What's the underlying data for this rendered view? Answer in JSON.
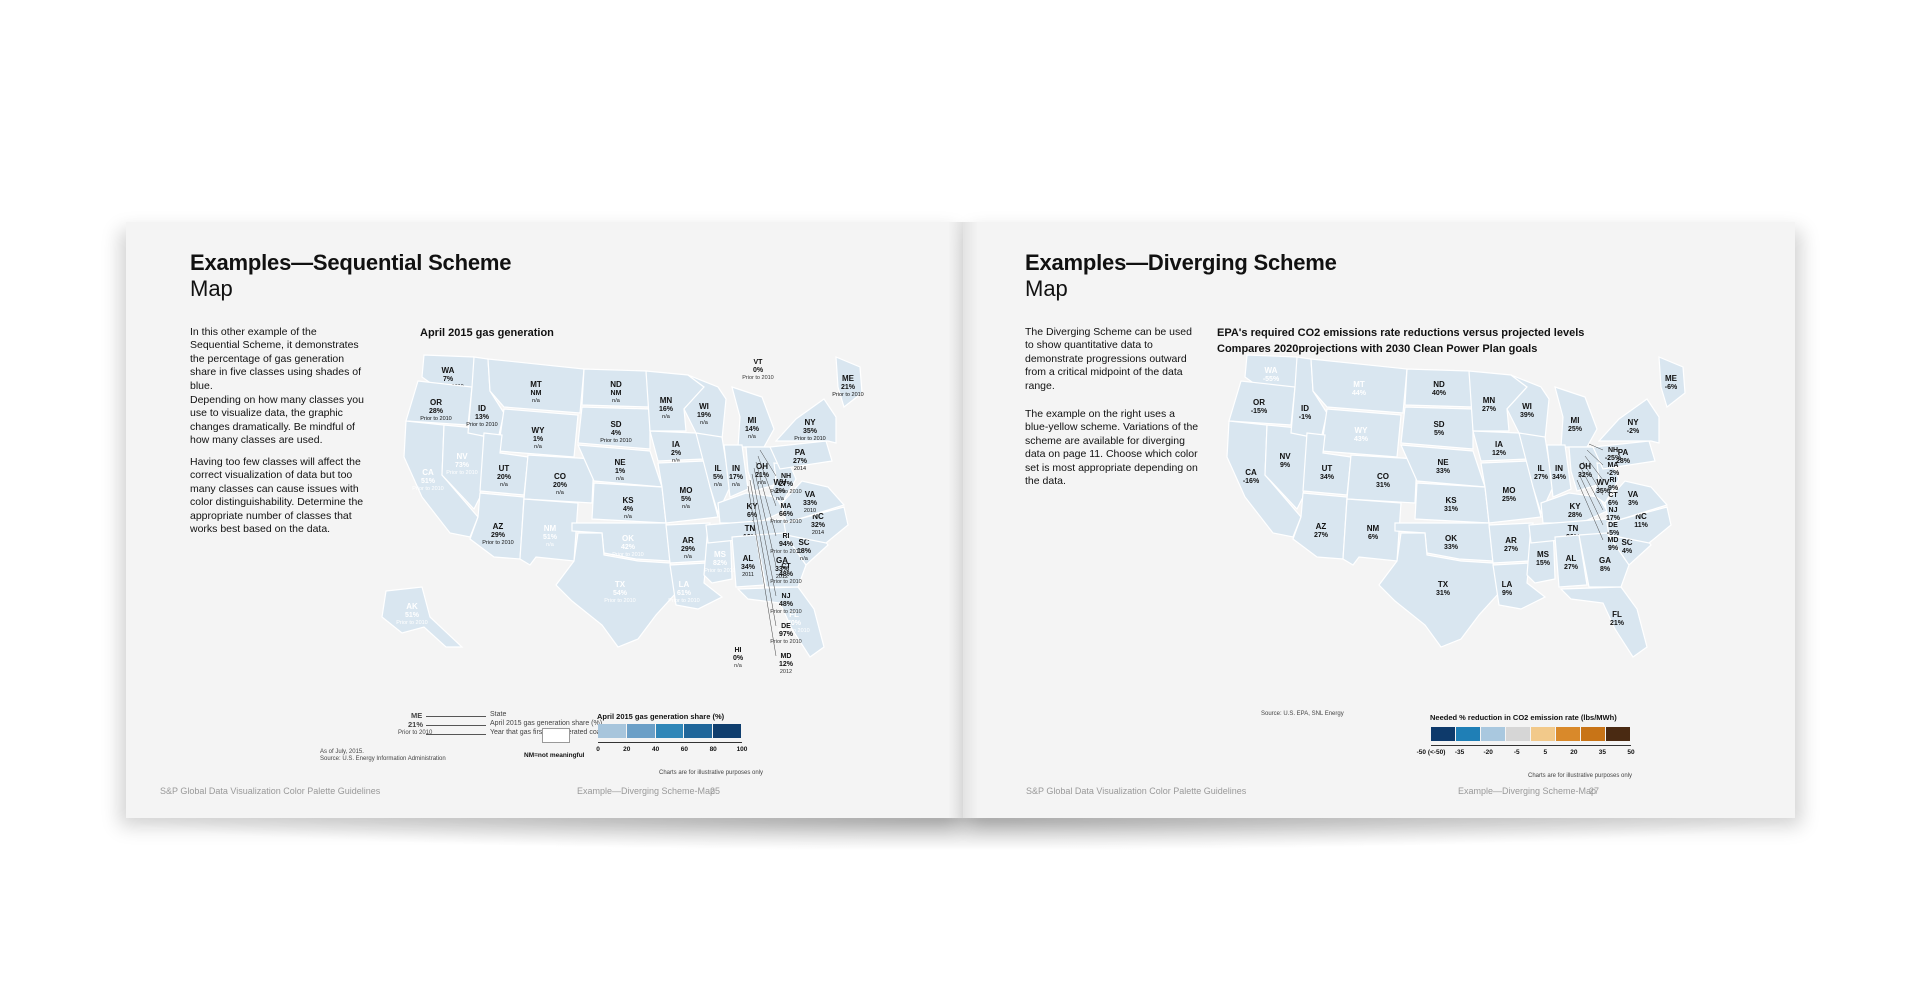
{
  "left_page": {
    "title": "Examples—Sequential Scheme",
    "subtitle": "Map",
    "paragraphs": [
      "In this other example of the Sequential Scheme, it demonstrates the percentage of gas generation share in five classes using shades of blue.",
      "Depending on how many classes you use to visualize data, the graphic changes dramatically. Be mindful of how many classes are used.",
      "Having too few classes will affect the correct visualization of data but too many classes can cause issues with color distinguishability. Determine the appropriate number of classes that works best based on the data."
    ],
    "chart_title": "April 2015 gas generation",
    "key": {
      "state": "ME",
      "value": "21%",
      "year": "Prior to 2010",
      "state_desc": "State",
      "value_desc": "April 2015 gas generation share (%)",
      "year_desc": "Year that gas first outgenerated coal"
    },
    "notes": [
      "As of July, 2015.",
      "Source: U.S. Energy Information Administration"
    ],
    "nm_label": "NM=not meaningful",
    "legend_title": "April 2015 gas generation share (%)",
    "legend_ticks": [
      "0",
      "20",
      "40",
      "60",
      "80",
      "100"
    ],
    "legend_colors": [
      "#a7c5dc",
      "#6b9fc7",
      "#2f86b8",
      "#1f669a",
      "#0f3e6e"
    ],
    "disclaimer": "Charts are for illustrative purposes only",
    "footer_left": "S&P Global Data Visualization Color Palette Guidelines",
    "footer_right": "Example—Diverging Scheme-Map",
    "page_number": "25",
    "states": [
      {
        "abbr": "WA",
        "value": "7%",
        "year": "Prior to 2010"
      },
      {
        "abbr": "OR",
        "value": "28%",
        "year": "Prior to 2010"
      },
      {
        "abbr": "CA",
        "value": "51%",
        "year": "Prior to 2010"
      },
      {
        "abbr": "NV",
        "value": "73%",
        "year": "Prior to 2010"
      },
      {
        "abbr": "ID",
        "value": "13%",
        "year": "Prior to 2010"
      },
      {
        "abbr": "MT",
        "value": "NM",
        "year": "n/a"
      },
      {
        "abbr": "WY",
        "value": "1%",
        "year": "n/a"
      },
      {
        "abbr": "UT",
        "value": "20%",
        "year": "n/a"
      },
      {
        "abbr": "AZ",
        "value": "29%",
        "year": "Prior to 2010"
      },
      {
        "abbr": "CO",
        "value": "20%",
        "year": "n/a"
      },
      {
        "abbr": "NM",
        "value": "51%",
        "year": "n/a"
      },
      {
        "abbr": "ND",
        "value": "NM",
        "year": "n/a"
      },
      {
        "abbr": "SD",
        "value": "4%",
        "year": "Prior to 2010"
      },
      {
        "abbr": "NE",
        "value": "1%",
        "year": "n/a"
      },
      {
        "abbr": "KS",
        "value": "4%",
        "year": "n/a"
      },
      {
        "abbr": "OK",
        "value": "42%",
        "year": "Prior to 2010"
      },
      {
        "abbr": "TX",
        "value": "54%",
        "year": "Prior to 2010"
      },
      {
        "abbr": "MN",
        "value": "16%",
        "year": "n/a"
      },
      {
        "abbr": "IA",
        "value": "2%",
        "year": "n/a"
      },
      {
        "abbr": "MO",
        "value": "5%",
        "year": "n/a"
      },
      {
        "abbr": "AR",
        "value": "29%",
        "year": "n/a"
      },
      {
        "abbr": "LA",
        "value": "61%",
        "year": "Prior to 2010"
      },
      {
        "abbr": "WI",
        "value": "19%",
        "year": "n/a"
      },
      {
        "abbr": "IL",
        "value": "5%",
        "year": "n/a"
      },
      {
        "abbr": "MS",
        "value": "82%",
        "year": "Prior to 2010"
      },
      {
        "abbr": "MI",
        "value": "14%",
        "year": "n/a"
      },
      {
        "abbr": "IN",
        "value": "17%",
        "year": "n/a"
      },
      {
        "abbr": "KY",
        "value": "6%",
        "year": "n/a"
      },
      {
        "abbr": "TN",
        "value": "12%",
        "year": "n/a"
      },
      {
        "abbr": "AL",
        "value": "34%",
        "year": "2011"
      },
      {
        "abbr": "OH",
        "value": "21%",
        "year": "n/a"
      },
      {
        "abbr": "WV",
        "value": "2%",
        "year": "n/a"
      },
      {
        "abbr": "GA",
        "value": "33%",
        "year": "2012"
      },
      {
        "abbr": "FL",
        "value": "70%",
        "year": "Prior to 2010"
      },
      {
        "abbr": "SC",
        "value": "18%",
        "year": "n/a"
      },
      {
        "abbr": "NC",
        "value": "32%",
        "year": "2014"
      },
      {
        "abbr": "VA",
        "value": "33%",
        "year": "2010"
      },
      {
        "abbr": "PA",
        "value": "27%",
        "year": "2014"
      },
      {
        "abbr": "NY",
        "value": "35%",
        "year": "Prior to 2010"
      },
      {
        "abbr": "ME",
        "value": "21%",
        "year": "Prior to 2010"
      },
      {
        "abbr": "AK",
        "value": "51%",
        "year": "Prior to 2010"
      }
    ],
    "callouts": [
      {
        "abbr": "VT",
        "value": "0%",
        "year": "Prior to 2010"
      },
      {
        "abbr": "NH",
        "value": "27%",
        "year": "Prior to 2010"
      },
      {
        "abbr": "MA",
        "value": "66%",
        "year": "Prior to 2010"
      },
      {
        "abbr": "RI",
        "value": "94%",
        "year": "Prior to 2010"
      },
      {
        "abbr": "CT",
        "value": "48%",
        "year": "Prior to 2010"
      },
      {
        "abbr": "NJ",
        "value": "48%",
        "year": "Prior to 2010"
      },
      {
        "abbr": "DE",
        "value": "97%",
        "year": "Prior to 2010"
      },
      {
        "abbr": "MD",
        "value": "12%",
        "year": "2012"
      },
      {
        "abbr": "HI",
        "value": "0%",
        "year": "n/a"
      }
    ]
  },
  "right_page": {
    "title": "Examples—Diverging Scheme",
    "subtitle": "Map",
    "paragraphs": [
      "The Diverging Scheme can be used to show quantitative data to demonstrate progressions outward from a critical midpoint of the data range.",
      "The example on the right uses a blue-yellow scheme. Variations of the scheme are available for diverging data on page 11. Choose which color set is most appropriate depending on the data."
    ],
    "chart_title": "EPA's required CO2 emissions rate reductions versus projected levels",
    "chart_subtitle": "Compares 2020projections with 2030 Clean Power Plan goals",
    "source": "Source: U.S. EPA, SNL Energy",
    "legend_title": "Needed % reduction in CO2 emission rate (lbs/MWh)",
    "legend_ticks": [
      "-50 (<-50)",
      "-35",
      "-20",
      "-5",
      "5",
      "20",
      "35",
      "50"
    ],
    "legend_colors": [
      "#0e3a6b",
      "#1f7fb6",
      "#a9c8df",
      "#d6d6d6",
      "#f2c98a",
      "#d9892a",
      "#c87417",
      "#4a2a12"
    ],
    "disclaimer": "Charts are for illustrative purposes only",
    "footer_left": "S&P Global Data Visualization Color Palette Guidelines",
    "footer_right": "Example—Diverging Scheme-Map",
    "page_number": "27",
    "states": [
      {
        "abbr": "WA",
        "value": "-55%"
      },
      {
        "abbr": "OR",
        "value": "-15%"
      },
      {
        "abbr": "CA",
        "value": "-16%"
      },
      {
        "abbr": "NV",
        "value": "9%"
      },
      {
        "abbr": "ID",
        "value": "-1%"
      },
      {
        "abbr": "MT",
        "value": "44%"
      },
      {
        "abbr": "WY",
        "value": "43%"
      },
      {
        "abbr": "UT",
        "value": "34%"
      },
      {
        "abbr": "AZ",
        "value": "27%"
      },
      {
        "abbr": "CO",
        "value": "31%"
      },
      {
        "abbr": "NM",
        "value": "6%"
      },
      {
        "abbr": "ND",
        "value": "40%"
      },
      {
        "abbr": "SD",
        "value": "5%"
      },
      {
        "abbr": "NE",
        "value": "33%"
      },
      {
        "abbr": "KS",
        "value": "31%"
      },
      {
        "abbr": "OK",
        "value": "33%"
      },
      {
        "abbr": "TX",
        "value": "31%"
      },
      {
        "abbr": "MN",
        "value": "27%"
      },
      {
        "abbr": "IA",
        "value": "12%"
      },
      {
        "abbr": "MO",
        "value": "25%"
      },
      {
        "abbr": "AR",
        "value": "27%"
      },
      {
        "abbr": "LA",
        "value": "9%"
      },
      {
        "abbr": "WI",
        "value": "39%"
      },
      {
        "abbr": "IL",
        "value": "27%"
      },
      {
        "abbr": "MS",
        "value": "15%"
      },
      {
        "abbr": "MI",
        "value": "25%"
      },
      {
        "abbr": "IN",
        "value": "34%"
      },
      {
        "abbr": "KY",
        "value": "28%"
      },
      {
        "abbr": "TN",
        "value": "20%"
      },
      {
        "abbr": "AL",
        "value": "27%"
      },
      {
        "abbr": "OH",
        "value": "32%"
      },
      {
        "abbr": "WV",
        "value": "35%"
      },
      {
        "abbr": "GA",
        "value": "8%"
      },
      {
        "abbr": "FL",
        "value": "21%"
      },
      {
        "abbr": "SC",
        "value": "4%"
      },
      {
        "abbr": "NC",
        "value": "11%"
      },
      {
        "abbr": "VA",
        "value": "3%"
      },
      {
        "abbr": "PA",
        "value": "28%"
      },
      {
        "abbr": "NY",
        "value": "-2%"
      },
      {
        "abbr": "ME",
        "value": "-6%"
      }
    ],
    "callouts": [
      {
        "abbr": "NH",
        "value": "-25%"
      },
      {
        "abbr": "MA",
        "value": "-2%"
      },
      {
        "abbr": "RI",
        "value": "9%"
      },
      {
        "abbr": "CT",
        "value": "6%"
      },
      {
        "abbr": "NJ",
        "value": "17%"
      },
      {
        "abbr": "DE",
        "value": "-5%"
      },
      {
        "abbr": "MD",
        "value": "9%"
      }
    ]
  }
}
